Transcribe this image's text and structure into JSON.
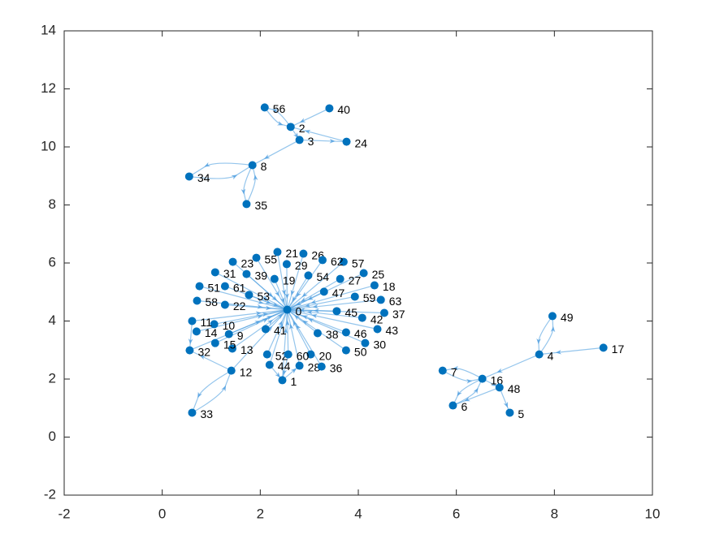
{
  "chart_data": {
    "type": "graph",
    "labels": [
      "0",
      "1",
      "2",
      "3",
      "4",
      "5",
      "6",
      "7",
      "8",
      "9",
      "10",
      "11",
      "12",
      "13",
      "14",
      "15",
      "16",
      "17",
      "18",
      "19",
      "20",
      "21",
      "22",
      "23",
      "24",
      "25",
      "26",
      "27",
      "28",
      "29",
      "30",
      "31",
      "32",
      "33",
      "34",
      "35",
      "36",
      "37",
      "38",
      "39",
      "40",
      "41",
      "42",
      "43",
      "44",
      "45",
      "46",
      "47",
      "48",
      "49",
      "50",
      "51",
      "52",
      "53",
      "54",
      "55",
      "56",
      "57",
      "58",
      "59",
      "60",
      "61",
      "62",
      "63"
    ],
    "x": [
      2.55,
      2.45,
      2.62,
      2.8,
      7.69,
      7.09,
      5.93,
      5.72,
      1.84,
      1.36,
      1.06,
      0.61,
      1.41,
      1.43,
      0.7,
      1.08,
      6.53,
      9.0,
      4.33,
      2.29,
      3.03,
      2.35,
      1.28,
      1.44,
      3.76,
      4.11,
      2.88,
      3.63,
      2.8,
      2.54,
      4.14,
      1.08,
      0.56,
      0.61,
      0.55,
      1.72,
      3.25,
      4.53,
      3.17,
      1.72,
      3.41,
      2.11,
      4.08,
      4.39,
      2.19,
      3.56,
      3.75,
      3.3,
      6.88,
      7.96,
      3.75,
      0.76,
      2.14,
      1.77,
      2.98,
      1.92,
      2.09,
      3.7,
      0.71,
      3.93,
      2.57,
      1.28,
      3.27,
      4.46
    ],
    "y": [
      4.39,
      1.96,
      10.69,
      10.24,
      2.85,
      0.84,
      1.09,
      2.29,
      9.37,
      3.55,
      3.89,
      4.0,
      2.29,
      3.05,
      3.64,
      3.24,
      2.01,
      3.08,
      5.23,
      5.45,
      2.85,
      6.38,
      4.56,
      6.04,
      10.18,
      5.65,
      6.32,
      5.45,
      2.46,
      5.96,
      3.24,
      5.68,
      2.99,
      0.84,
      8.98,
      8.03,
      2.43,
      4.28,
      3.58,
      5.62,
      11.33,
      3.72,
      4.11,
      3.72,
      2.49,
      4.34,
      3.61,
      5.01,
      1.71,
      4.17,
      2.99,
      5.2,
      2.85,
      4.9,
      5.57,
      6.18,
      11.36,
      6.04,
      4.7,
      4.84,
      2.85,
      5.2,
      6.1,
      4.73
    ],
    "edges": [
      [
        1,
        0
      ],
      [
        9,
        0
      ],
      [
        10,
        0
      ],
      [
        11,
        0
      ],
      [
        13,
        0
      ],
      [
        14,
        0
      ],
      [
        15,
        0
      ],
      [
        18,
        0
      ],
      [
        19,
        0
      ],
      [
        20,
        0
      ],
      [
        21,
        0
      ],
      [
        22,
        0
      ],
      [
        23,
        0
      ],
      [
        25,
        0
      ],
      [
        26,
        0
      ],
      [
        27,
        0
      ],
      [
        28,
        0
      ],
      [
        29,
        0
      ],
      [
        30,
        0
      ],
      [
        31,
        0
      ],
      [
        36,
        0
      ],
      [
        37,
        0
      ],
      [
        38,
        0
      ],
      [
        39,
        0
      ],
      [
        41,
        0
      ],
      [
        42,
        0
      ],
      [
        43,
        0
      ],
      [
        44,
        0
      ],
      [
        45,
        0
      ],
      [
        46,
        0
      ],
      [
        47,
        0
      ],
      [
        50,
        0
      ],
      [
        51,
        0
      ],
      [
        52,
        0
      ],
      [
        53,
        0
      ],
      [
        54,
        0
      ],
      [
        55,
        0
      ],
      [
        57,
        0
      ],
      [
        58,
        0
      ],
      [
        59,
        0
      ],
      [
        60,
        0
      ],
      [
        61,
        0
      ],
      [
        62,
        0
      ],
      [
        63,
        0
      ],
      [
        12,
        0
      ],
      [
        32,
        0
      ],
      [
        12,
        32
      ],
      [
        33,
        12
      ],
      [
        12,
        33
      ],
      [
        11,
        32
      ],
      [
        44,
        1
      ],
      [
        60,
        1
      ],
      [
        1,
        28
      ],
      [
        56,
        2
      ],
      [
        2,
        56
      ],
      [
        40,
        2
      ],
      [
        2,
        3
      ],
      [
        3,
        24
      ],
      [
        24,
        2
      ],
      [
        3,
        8
      ],
      [
        8,
        34
      ],
      [
        34,
        8
      ],
      [
        35,
        8
      ],
      [
        8,
        35
      ],
      [
        17,
        4
      ],
      [
        49,
        4
      ],
      [
        4,
        49
      ],
      [
        4,
        16
      ],
      [
        16,
        7
      ],
      [
        7,
        16
      ],
      [
        16,
        48
      ],
      [
        48,
        5
      ],
      [
        6,
        16
      ],
      [
        48,
        6
      ],
      [
        16,
        6
      ]
    ],
    "xlim": [
      -2,
      10
    ],
    "ylim": [
      -2,
      14
    ],
    "xticks": [
      -2,
      0,
      2,
      4,
      6,
      8,
      10
    ],
    "yticks": [
      -2,
      0,
      2,
      4,
      6,
      8,
      10,
      12,
      14
    ],
    "node_color": "#0072bd",
    "edge_color": "#4d9ee0"
  }
}
